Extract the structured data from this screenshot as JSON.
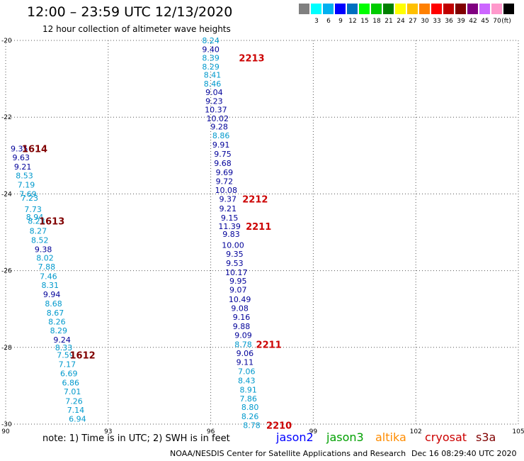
{
  "title": "12:00 – 23:59 UTC 12/13/2020",
  "subtitle": "12 hour collection of altimeter wave heights",
  "legend": {
    "unit": "(ft)",
    "colors": [
      "#808080",
      "#00ffff",
      "#00b0f0",
      "#0000ff",
      "#0070c0",
      "#00ff00",
      "#00cc00",
      "#008000",
      "#ffff00",
      "#ffc000",
      "#ff8000",
      "#ff0000",
      "#c00000",
      "#800000",
      "#800080",
      "#cc66ff",
      "#ff99cc",
      "#000000"
    ],
    "labels": [
      "3",
      "6",
      "9",
      "12",
      "15",
      "18",
      "21",
      "24",
      "27",
      "30",
      "33",
      "36",
      "39",
      "42",
      "45",
      "70"
    ]
  },
  "satellites": [
    {
      "name": "jason2",
      "color": "#0000ff"
    },
    {
      "name": "jason3",
      "color": "#00a000"
    },
    {
      "name": "altika",
      "color": "#ff8c00"
    },
    {
      "name": "cryosat",
      "color": "#cc0000"
    },
    {
      "name": "s3a",
      "color": "#800000"
    }
  ],
  "note": "note:  1) Time is in UTC;  2) SWH is in feet",
  "footer": "NOAA/NESDIS Center for Satellite Applications and Research",
  "footer_date": "Dec 16 08:29:40 UTC 2020",
  "map": {
    "lon_ticks": [
      90,
      93,
      96,
      99,
      102,
      105
    ],
    "lat_ticks": [
      -20,
      -22,
      -24,
      -26,
      -28,
      -30
    ],
    "lon_range": [
      90,
      105
    ],
    "lat_range": [
      -30,
      -20
    ],
    "grid": "dotted"
  },
  "tracks": [
    {
      "name": "west",
      "points": [
        {
          "lon": 90.4,
          "lat": -22.82,
          "v": "9.35",
          "c": "#000099"
        },
        {
          "lon": 90.45,
          "lat": -23.05,
          "v": "9.63",
          "c": "#000099"
        },
        {
          "lon": 90.5,
          "lat": -23.29,
          "v": "9.21",
          "c": "#000099"
        },
        {
          "lon": 90.55,
          "lat": -23.52,
          "v": "8.53",
          "c": "#0099cc"
        },
        {
          "lon": 90.6,
          "lat": -23.76,
          "v": "7.19",
          "c": "#0099cc"
        },
        {
          "lon": 90.65,
          "lat": -24.0,
          "v": "7.69",
          "c": "#0099cc"
        },
        {
          "lon": 90.7,
          "lat": -24.1,
          "v": "7.23",
          "c": "#0099cc"
        },
        {
          "lon": 90.8,
          "lat": -24.4,
          "v": "7.73",
          "c": "#0099cc"
        },
        {
          "lon": 90.85,
          "lat": -24.6,
          "v": "8.94",
          "c": "#0099cc"
        },
        {
          "lon": 90.9,
          "lat": -24.7,
          "v": "8.23",
          "c": "#0099cc"
        },
        {
          "lon": 90.95,
          "lat": -24.96,
          "v": "8.27",
          "c": "#0099cc"
        },
        {
          "lon": 91.0,
          "lat": -25.2,
          "v": "8.52",
          "c": "#0099cc"
        },
        {
          "lon": 91.1,
          "lat": -25.44,
          "v": "9.38",
          "c": "#000099"
        },
        {
          "lon": 91.15,
          "lat": -25.67,
          "v": "8.02",
          "c": "#0099cc"
        },
        {
          "lon": 91.2,
          "lat": -25.9,
          "v": "7.88",
          "c": "#0099cc"
        },
        {
          "lon": 91.25,
          "lat": -26.15,
          "v": "7.46",
          "c": "#0099cc"
        },
        {
          "lon": 91.3,
          "lat": -26.38,
          "v": "8.31",
          "c": "#0099cc"
        },
        {
          "lon": 91.35,
          "lat": -26.62,
          "v": "9.94",
          "c": "#000099"
        },
        {
          "lon": 91.4,
          "lat": -26.86,
          "v": "8.68",
          "c": "#0099cc"
        },
        {
          "lon": 91.45,
          "lat": -27.1,
          "v": "8.67",
          "c": "#0099cc"
        },
        {
          "lon": 91.5,
          "lat": -27.33,
          "v": "8.26",
          "c": "#0099cc"
        },
        {
          "lon": 91.55,
          "lat": -27.56,
          "v": "8.29",
          "c": "#0099cc"
        },
        {
          "lon": 91.65,
          "lat": -27.8,
          "v": "9.24",
          "c": "#000099"
        },
        {
          "lon": 91.7,
          "lat": -28.0,
          "v": "8.33",
          "c": "#0099cc"
        },
        {
          "lon": 91.75,
          "lat": -28.2,
          "v": "7.59",
          "c": "#0099cc"
        },
        {
          "lon": 91.8,
          "lat": -28.44,
          "v": "7.17",
          "c": "#0099cc"
        },
        {
          "lon": 91.85,
          "lat": -28.68,
          "v": "6.69",
          "c": "#0099cc"
        },
        {
          "lon": 91.9,
          "lat": -28.92,
          "v": "6.86",
          "c": "#0099cc"
        },
        {
          "lon": 91.95,
          "lat": -29.15,
          "v": "7.01",
          "c": "#0099cc"
        },
        {
          "lon": 92.0,
          "lat": -29.4,
          "v": "7.26",
          "c": "#0099cc"
        },
        {
          "lon": 92.05,
          "lat": -29.63,
          "v": "7.14",
          "c": "#0099cc"
        },
        {
          "lon": 92.1,
          "lat": -29.86,
          "v": "6.94",
          "c": "#0099cc"
        }
      ],
      "labels": [
        {
          "lon": 90.85,
          "lat": -22.82,
          "t": "1614",
          "c": "#800000"
        },
        {
          "lon": 91.35,
          "lat": -24.7,
          "t": "1613",
          "c": "#800000"
        },
        {
          "lon": 92.25,
          "lat": -28.2,
          "t": "1612",
          "c": "#800000"
        }
      ]
    },
    {
      "name": "east",
      "points": [
        {
          "lon": 96.0,
          "lat": -20.0,
          "v": "8.24",
          "c": "#0099cc"
        },
        {
          "lon": 96.0,
          "lat": -20.23,
          "v": "9.40",
          "c": "#000099"
        },
        {
          "lon": 96.0,
          "lat": -20.45,
          "v": "8.39",
          "c": "#0099cc"
        },
        {
          "lon": 96.0,
          "lat": -20.68,
          "v": "8.29",
          "c": "#0099cc"
        },
        {
          "lon": 96.05,
          "lat": -20.9,
          "v": "8.41",
          "c": "#0099cc"
        },
        {
          "lon": 96.05,
          "lat": -21.13,
          "v": "8.46",
          "c": "#0099cc"
        },
        {
          "lon": 96.1,
          "lat": -21.35,
          "v": "9.04",
          "c": "#000099"
        },
        {
          "lon": 96.1,
          "lat": -21.58,
          "v": "9.23",
          "c": "#000099"
        },
        {
          "lon": 96.15,
          "lat": -21.8,
          "v": "10.37",
          "c": "#000099"
        },
        {
          "lon": 96.2,
          "lat": -22.03,
          "v": "10.02",
          "c": "#000099"
        },
        {
          "lon": 96.25,
          "lat": -22.25,
          "v": "9.28",
          "c": "#000099"
        },
        {
          "lon": 96.3,
          "lat": -22.48,
          "v": "8.86",
          "c": "#0099cc"
        },
        {
          "lon": 96.3,
          "lat": -22.72,
          "v": "9.91",
          "c": "#000099"
        },
        {
          "lon": 96.35,
          "lat": -22.96,
          "v": "9.75",
          "c": "#000099"
        },
        {
          "lon": 96.35,
          "lat": -23.2,
          "v": "9.68",
          "c": "#000099"
        },
        {
          "lon": 96.4,
          "lat": -23.44,
          "v": "9.69",
          "c": "#000099"
        },
        {
          "lon": 96.4,
          "lat": -23.67,
          "v": "9.72",
          "c": "#000099"
        },
        {
          "lon": 96.45,
          "lat": -23.9,
          "v": "10.08",
          "c": "#000099"
        },
        {
          "lon": 96.5,
          "lat": -24.13,
          "v": "9.37",
          "c": "#000099"
        },
        {
          "lon": 96.5,
          "lat": -24.38,
          "v": "9.21",
          "c": "#000099"
        },
        {
          "lon": 96.55,
          "lat": -24.62,
          "v": "9.15",
          "c": "#000099"
        },
        {
          "lon": 96.55,
          "lat": -24.84,
          "v": "11.39",
          "c": "#000099"
        },
        {
          "lon": 96.6,
          "lat": -25.05,
          "v": "9.83",
          "c": "#000099"
        },
        {
          "lon": 96.65,
          "lat": -25.33,
          "v": "10.00",
          "c": "#000099"
        },
        {
          "lon": 96.7,
          "lat": -25.56,
          "v": "9.35",
          "c": "#000099"
        },
        {
          "lon": 96.7,
          "lat": -25.8,
          "v": "9.53",
          "c": "#000099"
        },
        {
          "lon": 96.75,
          "lat": -26.04,
          "v": "10.17",
          "c": "#000099"
        },
        {
          "lon": 96.8,
          "lat": -26.27,
          "v": "9.95",
          "c": "#000099"
        },
        {
          "lon": 96.8,
          "lat": -26.5,
          "v": "9.07",
          "c": "#000099"
        },
        {
          "lon": 96.85,
          "lat": -26.75,
          "v": "10.49",
          "c": "#000099"
        },
        {
          "lon": 96.85,
          "lat": -26.98,
          "v": "9.08",
          "c": "#000099"
        },
        {
          "lon": 96.9,
          "lat": -27.21,
          "v": "9.16",
          "c": "#000099"
        },
        {
          "lon": 96.9,
          "lat": -27.45,
          "v": "9.88",
          "c": "#000099"
        },
        {
          "lon": 96.95,
          "lat": -27.68,
          "v": "9.09",
          "c": "#000099"
        },
        {
          "lon": 96.95,
          "lat": -27.92,
          "v": "8.78",
          "c": "#0099cc"
        },
        {
          "lon": 97.0,
          "lat": -28.15,
          "v": "9.06",
          "c": "#000099"
        },
        {
          "lon": 97.0,
          "lat": -28.38,
          "v": "9.11",
          "c": "#000099"
        },
        {
          "lon": 97.05,
          "lat": -28.62,
          "v": "7.06",
          "c": "#0099cc"
        },
        {
          "lon": 97.05,
          "lat": -28.86,
          "v": "8.43",
          "c": "#0099cc"
        },
        {
          "lon": 97.1,
          "lat": -29.1,
          "v": "8.91",
          "c": "#0099cc"
        },
        {
          "lon": 97.1,
          "lat": -29.33,
          "v": "7.86",
          "c": "#0099cc"
        },
        {
          "lon": 97.15,
          "lat": -29.56,
          "v": "8.80",
          "c": "#0099cc"
        },
        {
          "lon": 97.15,
          "lat": -29.8,
          "v": "8.26",
          "c": "#0099cc"
        },
        {
          "lon": 97.2,
          "lat": -30.03,
          "v": "8.78",
          "c": "#0099cc"
        }
      ],
      "labels": [
        {
          "lon": 97.2,
          "lat": -20.45,
          "t": "2213",
          "c": "#cc0000"
        },
        {
          "lon": 97.3,
          "lat": -24.13,
          "t": "2212",
          "c": "#cc0000"
        },
        {
          "lon": 97.4,
          "lat": -24.84,
          "t": "2211",
          "c": "#cc0000"
        },
        {
          "lon": 97.7,
          "lat": -27.92,
          "t": "2211",
          "c": "#cc0000"
        },
        {
          "lon": 98.0,
          "lat": -30.03,
          "t": "2210",
          "c": "#cc0000"
        }
      ]
    }
  ]
}
